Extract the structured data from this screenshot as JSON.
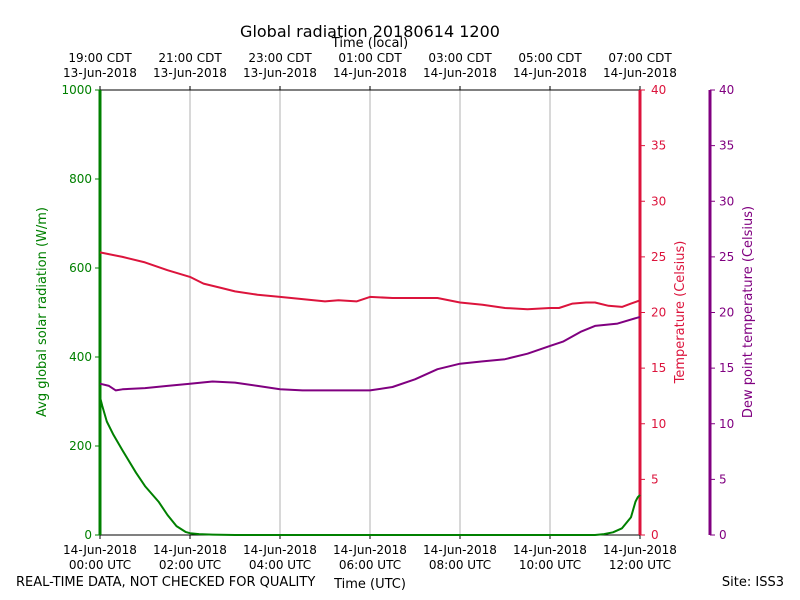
{
  "chart_data": {
    "type": "line",
    "title": "Global radiation 20180614 1200",
    "top_axis_label": "Time (local)",
    "top_ticks": [
      {
        "line1": "19:00 CDT",
        "line2": "13-Jun-2018"
      },
      {
        "line1": "21:00 CDT",
        "line2": "13-Jun-2018"
      },
      {
        "line1": "23:00 CDT",
        "line2": "13-Jun-2018"
      },
      {
        "line1": "01:00 CDT",
        "line2": "14-Jun-2018"
      },
      {
        "line1": "03:00 CDT",
        "line2": "14-Jun-2018"
      },
      {
        "line1": "05:00 CDT",
        "line2": "14-Jun-2018"
      },
      {
        "line1": "07:00 CDT",
        "line2": "14-Jun-2018"
      }
    ],
    "bottom_ticks": [
      {
        "line1": "14-Jun-2018",
        "line2": "00:00 UTC"
      },
      {
        "line1": "14-Jun-2018",
        "line2": "02:00 UTC"
      },
      {
        "line1": "14-Jun-2018",
        "line2": "04:00 UTC"
      },
      {
        "line1": "14-Jun-2018",
        "line2": "06:00 UTC"
      },
      {
        "line1": "14-Jun-2018",
        "line2": "08:00 UTC"
      },
      {
        "line1": "14-Jun-2018",
        "line2": "10:00 UTC"
      },
      {
        "line1": "14-Jun-2018",
        "line2": "12:00 UTC"
      }
    ],
    "xlabel": "Time (UTC)",
    "xlim_hours_utc": [
      0,
      12
    ],
    "grid": "vertical lines at 2-hour ticks",
    "axes": {
      "left": {
        "label": "Avg global solar radiation (W/m)",
        "color": "#008000",
        "ylim": [
          0,
          1000
        ],
        "ticks": [
          "0",
          "200",
          "400",
          "600",
          "800",
          "1000"
        ]
      },
      "right1": {
        "label": "Temperature (Celsius)",
        "color": "#dc143c",
        "ylim": [
          0,
          40
        ],
        "ticks": [
          "0",
          "5",
          "10",
          "15",
          "20",
          "25",
          "30",
          "35",
          "40"
        ]
      },
      "right2": {
        "label": "Dew point temperature (Celsius)",
        "color": "#800080",
        "ylim": [
          0,
          40
        ],
        "ticks": [
          "0",
          "5",
          "10",
          "15",
          "20",
          "25",
          "30",
          "35",
          "40"
        ]
      }
    },
    "series": [
      {
        "axis": "left",
        "color": "#008000",
        "x": [
          0,
          0.05,
          0.15,
          0.3,
          0.5,
          0.8,
          1.0,
          1.3,
          1.5,
          1.7,
          1.9,
          2.0,
          2.2,
          2.5,
          3,
          4,
          5,
          6,
          7,
          8,
          9,
          10,
          10.5,
          11,
          11.2,
          11.4,
          11.6,
          11.8,
          11.9,
          11.95,
          12.0
        ],
        "y": [
          310,
          290,
          255,
          225,
          190,
          140,
          110,
          75,
          45,
          20,
          7,
          4,
          2,
          1,
          0,
          0,
          0,
          0,
          0,
          0,
          0,
          0,
          0,
          0,
          2,
          6,
          15,
          40,
          75,
          85,
          90
        ]
      },
      {
        "axis": "right1",
        "color": "#dc143c",
        "x": [
          0,
          0.5,
          1.0,
          1.5,
          2.0,
          2.3,
          2.7,
          3.0,
          3.5,
          4.0,
          4.5,
          5.0,
          5.3,
          5.7,
          6.0,
          6.5,
          7.0,
          7.5,
          8.0,
          8.5,
          9.0,
          9.5,
          10.0,
          10.2,
          10.5,
          10.8,
          11.0,
          11.3,
          11.6,
          11.8,
          12.0
        ],
        "y": [
          25.4,
          25.0,
          24.5,
          23.8,
          23.2,
          22.6,
          22.2,
          21.9,
          21.6,
          21.4,
          21.2,
          21.0,
          21.1,
          21.0,
          21.4,
          21.3,
          21.3,
          21.3,
          20.9,
          20.7,
          20.4,
          20.3,
          20.4,
          20.4,
          20.8,
          20.9,
          20.9,
          20.6,
          20.5,
          20.8,
          21.1
        ]
      },
      {
        "axis": "right2",
        "color": "#800080",
        "x": [
          0,
          0.2,
          0.35,
          0.5,
          1.0,
          1.5,
          2.0,
          2.5,
          3.0,
          3.5,
          4.0,
          4.5,
          5.0,
          5.5,
          6.0,
          6.5,
          7.0,
          7.5,
          8.0,
          8.5,
          9.0,
          9.5,
          10.0,
          10.3,
          10.7,
          11.0,
          11.5,
          12.0
        ],
        "y": [
          13.6,
          13.4,
          13.0,
          13.1,
          13.2,
          13.4,
          13.6,
          13.8,
          13.7,
          13.4,
          13.1,
          13.0,
          13.0,
          13.0,
          13.0,
          13.3,
          14.0,
          14.9,
          15.4,
          15.6,
          15.8,
          16.3,
          17.0,
          17.4,
          18.3,
          18.8,
          19.0,
          19.6
        ]
      }
    ]
  },
  "footer": {
    "left_note": "REAL-TIME DATA, NOT CHECKED FOR QUALITY",
    "site": "Site: ISS3"
  }
}
